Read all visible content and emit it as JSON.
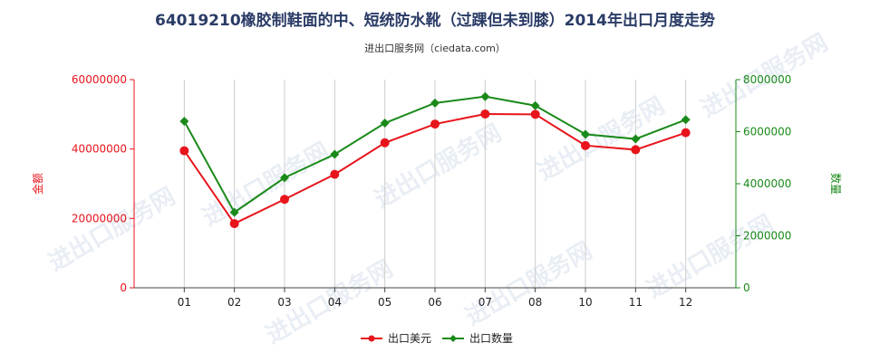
{
  "title": "64019210橡胶制鞋面的中、短统防水靴（过踝但未到膝）2014年出口月度走势",
  "subtitle": "进出口服务网（ciedata.com）",
  "watermark": "进出口服务网",
  "chart_data": {
    "type": "line",
    "categories": [
      "01",
      "02",
      "03",
      "04",
      "05",
      "06",
      "07",
      "08",
      "10",
      "11",
      "12"
    ],
    "series": [
      {
        "name": "出口美元",
        "axis": "left",
        "color": "#e8141c",
        "values": [
          39500000,
          18500000,
          25500000,
          32700000,
          41800000,
          47200000,
          50100000,
          50000000,
          41000000,
          39800000,
          44700000
        ]
      },
      {
        "name": "出口数量",
        "axis": "right",
        "color": "#1a8a1a",
        "values": [
          6400000,
          2900000,
          4230000,
          5130000,
          6330000,
          7100000,
          7350000,
          7000000,
          5900000,
          5720000,
          6460000
        ]
      }
    ],
    "y_left": {
      "label": "金额",
      "min": 0,
      "max": 60000000,
      "ticks": [
        0,
        20000000,
        40000000,
        60000000
      ],
      "tick_labels": [
        "0",
        "20000000",
        "40000000",
        "60000000"
      ],
      "color": "#e8141c"
    },
    "y_right": {
      "label": "数量",
      "min": 0,
      "max": 8000000,
      "ticks": [
        0,
        2000000,
        4000000,
        6000000,
        8000000
      ],
      "tick_labels": [
        "0",
        "2000000",
        "4000000",
        "6000000",
        "8000000"
      ],
      "color": "#1a8a1a"
    },
    "grid": "vertical",
    "legend_position": "bottom-center"
  }
}
